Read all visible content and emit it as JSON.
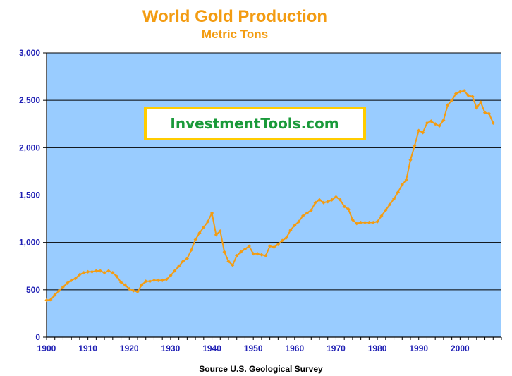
{
  "chart_data": {
    "type": "line",
    "title": "World Gold Production",
    "subtitle": "Metric Tons",
    "xlabel": "Source U.S. Geological Survey",
    "ylabel": "",
    "xlim": [
      1900,
      2010
    ],
    "ylim": [
      0,
      3000
    ],
    "x_ticks": [
      "1900",
      "1910",
      "1920",
      "1930",
      "1940",
      "1950",
      "1960",
      "1970",
      "1980",
      "1990",
      "2000"
    ],
    "y_ticks": [
      "0",
      "500",
      "1,000",
      "1,500",
      "2,000",
      "2,500",
      "3,000"
    ],
    "grid": "horizontal",
    "legend": "none",
    "watermark": "InvestmentTools.com",
    "colors": {
      "line": "#f39c12",
      "plot_bg": "#99ccff",
      "frame": "#ffcc00",
      "watermark_text": "#1a9a3a",
      "tick_text": "#1f1fb4"
    },
    "series": [
      {
        "x": [
          1900,
          1901,
          1902,
          1903,
          1904,
          1905,
          1906,
          1907,
          1908,
          1909,
          1910,
          1911,
          1912,
          1913,
          1914,
          1915,
          1916,
          1917,
          1918,
          1919,
          1920,
          1921,
          1922,
          1923,
          1924,
          1925,
          1926,
          1927,
          1928,
          1929,
          1930,
          1931,
          1932,
          1933,
          1934,
          1935,
          1936,
          1937,
          1938,
          1939,
          1940,
          1941,
          1942,
          1943,
          1944,
          1945,
          1946,
          1947,
          1948,
          1949,
          1950,
          1951,
          1952,
          1953,
          1954,
          1955,
          1956,
          1957,
          1958,
          1959,
          1960,
          1961,
          1962,
          1963,
          1964,
          1965,
          1966,
          1967,
          1968,
          1969,
          1970,
          1971,
          1972,
          1973,
          1974,
          1975,
          1976,
          1977,
          1978,
          1979,
          1980,
          1981,
          1982,
          1983,
          1984,
          1985,
          1986,
          1987,
          1988,
          1989,
          1990,
          1991,
          1992,
          1993,
          1994,
          1995,
          1996,
          1997,
          1998,
          1999,
          2000,
          2001,
          2002,
          2003,
          2004,
          2005,
          2006,
          2007,
          2008
        ],
        "values": [
          390,
          395,
          445,
          490,
          530,
          570,
          600,
          620,
          660,
          680,
          690,
          690,
          700,
          700,
          680,
          700,
          680,
          640,
          580,
          550,
          510,
          490,
          480,
          550,
          590,
          590,
          600,
          600,
          600,
          610,
          650,
          700,
          750,
          800,
          830,
          920,
          1030,
          1100,
          1160,
          1220,
          1310,
          1080,
          1120,
          900,
          800,
          760,
          860,
          900,
          930,
          960,
          880,
          880,
          870,
          860,
          960,
          950,
          980,
          1020,
          1050,
          1130,
          1180,
          1220,
          1280,
          1310,
          1340,
          1420,
          1450,
          1420,
          1430,
          1450,
          1480,
          1450,
          1380,
          1350,
          1240,
          1200,
          1210,
          1210,
          1210,
          1210,
          1220,
          1280,
          1340,
          1400,
          1460,
          1530,
          1610,
          1660,
          1870,
          2020,
          2180,
          2160,
          2260,
          2280,
          2250,
          2230,
          2290,
          2450,
          2500,
          2570,
          2590,
          2600,
          2550,
          2540,
          2420,
          2480,
          2370,
          2360,
          2260
        ]
      }
    ]
  }
}
